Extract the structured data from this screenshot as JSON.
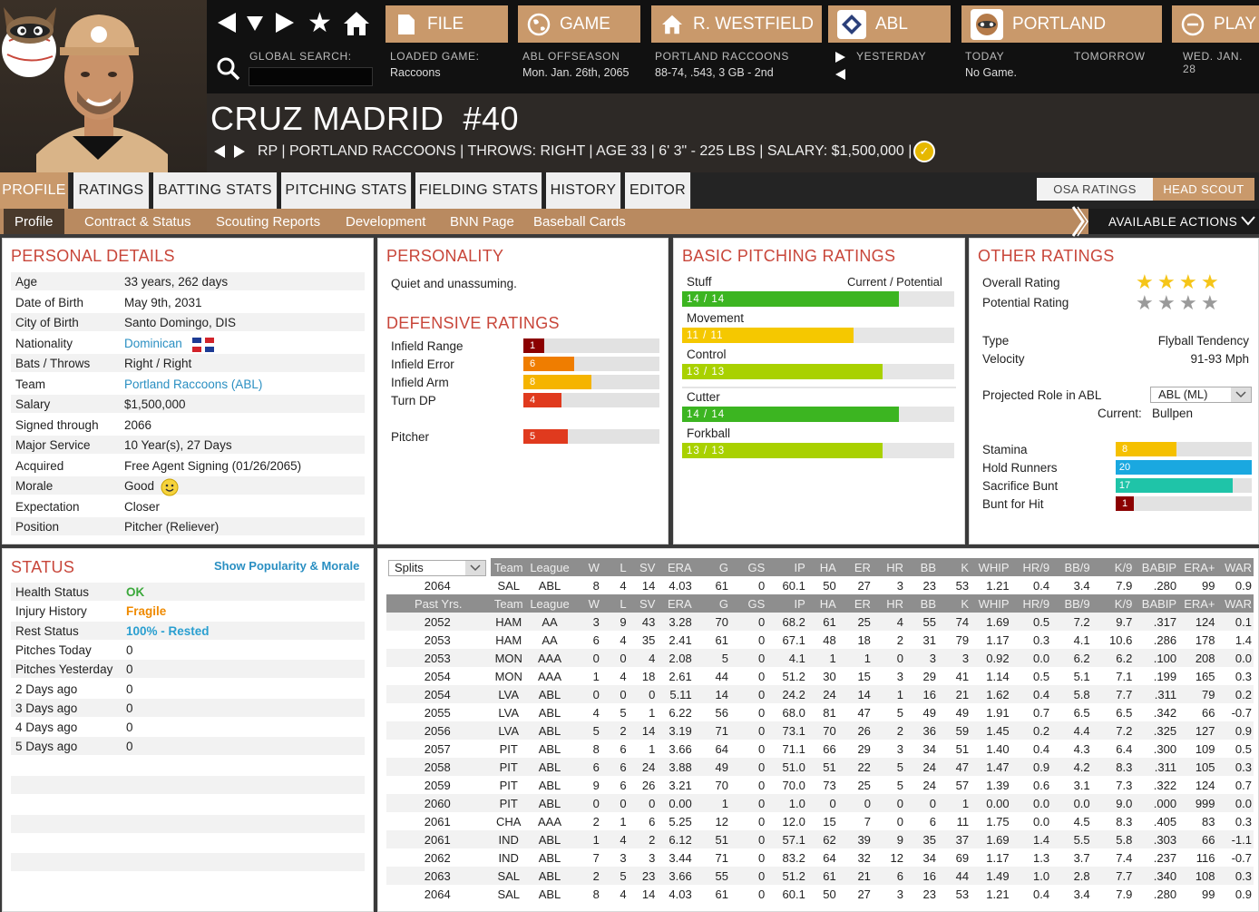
{
  "topbar": {
    "global_search_label": "GLOBAL SEARCH:",
    "search_value": "",
    "tabs": {
      "file": "FILE",
      "game": "GAME",
      "manager": "R. WESTFIELD",
      "league": "ABL",
      "team": "PORTLAND",
      "play": "PLAY"
    },
    "loaded_game_label": "LOADED GAME:",
    "loaded_game_value": "Raccoons",
    "league_label": "ABL OFFSEASON",
    "league_date": "Mon. Jan. 26th, 2065",
    "team_label": "PORTLAND RACCOONS",
    "team_record": "88-74, .543, 3 GB - 2nd",
    "yesterday_label": "YESTERDAY",
    "today_label": "TODAY",
    "today_value": "No Game.",
    "tomorrow_label": "TOMORROW",
    "next_date_label": "WED. JAN. 28"
  },
  "player": {
    "name": "CRUZ MADRID",
    "number": "#40",
    "info": "RP | PORTLAND RACCOONS  |  THROWS: RIGHT  |  AGE 33  |  6' 3\" - 225 LBS  |  SALARY: $1,500,000  |"
  },
  "tabs": [
    "PROFILE",
    "RATINGS",
    "BATTING STATS",
    "PITCHING STATS",
    "FIELDING STATS",
    "HISTORY",
    "EDITOR"
  ],
  "rating_toggle": {
    "osa": "OSA RATINGS",
    "head_scout": "HEAD SCOUT"
  },
  "subnav": [
    "Profile",
    "Contract & Status",
    "Scouting Reports",
    "Development",
    "BNN Page",
    "Baseball Cards"
  ],
  "actions_label": "AVAILABLE ACTIONS",
  "personal": {
    "title": "PERSONAL DETAILS",
    "rows": [
      {
        "label": "Age",
        "value": "33 years, 262 days"
      },
      {
        "label": "Date of Birth",
        "value": "May 9th, 2031"
      },
      {
        "label": "City of Birth",
        "value": "Santo Domingo, DIS"
      },
      {
        "label": "Nationality",
        "value": "Dominican"
      },
      {
        "label": "Bats / Throws",
        "value": "Right / Right"
      },
      {
        "label": "Team",
        "value": "Portland Raccoons (ABL)"
      },
      {
        "label": "Salary",
        "value": "$1,500,000"
      },
      {
        "label": "Signed through",
        "value": "2066"
      },
      {
        "label": "Major Service",
        "value": "10 Year(s), 27 Days"
      },
      {
        "label": "Acquired",
        "value": "Free Agent Signing (01/26/2065)"
      },
      {
        "label": "Morale",
        "value": "Good"
      },
      {
        "label": "Expectation",
        "value": "Closer"
      },
      {
        "label": "Position",
        "value": "Pitcher (Reliever)"
      }
    ]
  },
  "personality": {
    "title": "PERSONALITY",
    "text": "Quiet and unassuming."
  },
  "defensive": {
    "title": "DEFENSIVE RATINGS",
    "rows": [
      {
        "label": "Infield Range",
        "value": "1",
        "color": "#8b0000",
        "level": 0.02
      },
      {
        "label": "Infield Error",
        "value": "6",
        "color": "#ef7d00",
        "level": 0.28
      },
      {
        "label": "Infield Arm",
        "value": "8",
        "color": "#f5b400",
        "level": 0.42
      },
      {
        "label": "Turn DP",
        "value": "4",
        "color": "#e03a1e",
        "level": 0.17
      },
      {
        "label": "Pitcher",
        "value": "5",
        "color": "#e03a1e",
        "level": 0.22
      }
    ]
  },
  "basic_pitching": {
    "title": "BASIC PITCHING RATINGS",
    "header": "Current / Potential",
    "rows": [
      {
        "label": "Stuff",
        "value": "14 / 14",
        "color": "#3cb521",
        "level": 0.75
      },
      {
        "label": "Movement",
        "value": "11 / 11",
        "color": "#f5c800",
        "level": 0.55
      },
      {
        "label": "Control",
        "value": "13 / 13",
        "color": "#a9d100",
        "level": 0.68
      },
      {
        "label": "Cutter",
        "value": "14 / 14",
        "color": "#3cb521",
        "level": 0.75
      },
      {
        "label": "Forkball",
        "value": "13 / 13",
        "color": "#a9d100",
        "level": 0.68
      }
    ]
  },
  "other": {
    "title": "OTHER RATINGS",
    "overall_label": "Overall Rating",
    "overall_stars": 4,
    "potential_label": "Potential Rating",
    "potential_stars": 4,
    "type_label": "Type",
    "type_value": "Flyball Tendency",
    "velocity_label": "Velocity",
    "velocity_value": "91-93 Mph",
    "role_label": "Projected Role in ABL",
    "role_select": "ABL (ML)",
    "current_label": "Current:",
    "current_value": "Bullpen",
    "bars": [
      {
        "label": "Stamina",
        "value": "8",
        "color": "#f5c000",
        "level": 0.36
      },
      {
        "label": "Hold Runners",
        "value": "20",
        "color": "#1aa8e0",
        "level": 1.0
      },
      {
        "label": "Sacrifice Bunt",
        "value": "17",
        "color": "#1fc4a8",
        "level": 0.84
      },
      {
        "label": "Bunt for Hit",
        "value": "1",
        "color": "#8b0000",
        "level": 0.0
      }
    ]
  },
  "status": {
    "title": "STATUS",
    "link": "Show Popularity & Morale",
    "rows": [
      {
        "label": "Health Status",
        "value": "OK",
        "color": "#3aa83a"
      },
      {
        "label": "Injury History",
        "value": "Fragile",
        "color": "#ef8a00"
      },
      {
        "label": "Rest Status",
        "value": "100% - Rested",
        "color": "#2a9fd0"
      },
      {
        "label": "Pitches Today",
        "value": "0",
        "color": "#222"
      },
      {
        "label": "Pitches Yesterday",
        "value": "0",
        "color": "#222"
      },
      {
        "label": "2 Days ago",
        "value": "0",
        "color": "#222"
      },
      {
        "label": "3 Days ago",
        "value": "0",
        "color": "#222"
      },
      {
        "label": "4 Days ago",
        "value": "0",
        "color": "#222"
      },
      {
        "label": "5 Days ago",
        "value": "0",
        "color": "#222"
      }
    ]
  },
  "stats": {
    "splits_label": "Splits",
    "columns": [
      "Team",
      "League",
      "W",
      "L",
      "SV",
      "ERA",
      "G",
      "GS",
      "IP",
      "HA",
      "ER",
      "HR",
      "BB",
      "K",
      "WHIP",
      "HR/9",
      "BB/9",
      "K/9",
      "BABIP",
      "ERA+",
      "WAR"
    ],
    "current": [
      "2064",
      "SAL",
      "ABL",
      "8",
      "4",
      "14",
      "4.03",
      "61",
      "0",
      "60.1",
      "50",
      "27",
      "3",
      "23",
      "53",
      "1.21",
      "0.4",
      "3.4",
      "7.9",
      ".280",
      "99",
      "0.9"
    ],
    "past_label": "Past Yrs.",
    "past": [
      [
        "2052",
        "HAM",
        "AA",
        "3",
        "9",
        "43",
        "3.28",
        "70",
        "0",
        "68.2",
        "61",
        "25",
        "4",
        "55",
        "74",
        "1.69",
        "0.5",
        "7.2",
        "9.7",
        ".317",
        "124",
        "0.1"
      ],
      [
        "2053",
        "HAM",
        "AA",
        "6",
        "4",
        "35",
        "2.41",
        "61",
        "0",
        "67.1",
        "48",
        "18",
        "2",
        "31",
        "79",
        "1.17",
        "0.3",
        "4.1",
        "10.6",
        ".286",
        "178",
        "1.4"
      ],
      [
        "2053",
        "MON",
        "AAA",
        "0",
        "0",
        "4",
        "2.08",
        "5",
        "0",
        "4.1",
        "1",
        "1",
        "0",
        "3",
        "3",
        "0.92",
        "0.0",
        "6.2",
        "6.2",
        ".100",
        "208",
        "0.0"
      ],
      [
        "2054",
        "MON",
        "AAA",
        "1",
        "4",
        "18",
        "2.61",
        "44",
        "0",
        "51.2",
        "30",
        "15",
        "3",
        "29",
        "41",
        "1.14",
        "0.5",
        "5.1",
        "7.1",
        ".199",
        "165",
        "0.3"
      ],
      [
        "2054",
        "LVA",
        "ABL",
        "0",
        "0",
        "0",
        "5.11",
        "14",
        "0",
        "24.2",
        "24",
        "14",
        "1",
        "16",
        "21",
        "1.62",
        "0.4",
        "5.8",
        "7.7",
        ".311",
        "79",
        "0.2"
      ],
      [
        "2055",
        "LVA",
        "ABL",
        "4",
        "5",
        "1",
        "6.22",
        "56",
        "0",
        "68.0",
        "81",
        "47",
        "5",
        "49",
        "49",
        "1.91",
        "0.7",
        "6.5",
        "6.5",
        ".342",
        "66",
        "-0.7"
      ],
      [
        "2056",
        "LVA",
        "ABL",
        "5",
        "2",
        "14",
        "3.19",
        "71",
        "0",
        "73.1",
        "70",
        "26",
        "2",
        "36",
        "59",
        "1.45",
        "0.2",
        "4.4",
        "7.2",
        ".325",
        "127",
        "0.9"
      ],
      [
        "2057",
        "PIT",
        "ABL",
        "8",
        "6",
        "1",
        "3.66",
        "64",
        "0",
        "71.1",
        "66",
        "29",
        "3",
        "34",
        "51",
        "1.40",
        "0.4",
        "4.3",
        "6.4",
        ".300",
        "109",
        "0.5"
      ],
      [
        "2058",
        "PIT",
        "ABL",
        "6",
        "6",
        "24",
        "3.88",
        "49",
        "0",
        "51.0",
        "51",
        "22",
        "5",
        "24",
        "47",
        "1.47",
        "0.9",
        "4.2",
        "8.3",
        ".311",
        "105",
        "0.3"
      ],
      [
        "2059",
        "PIT",
        "ABL",
        "9",
        "6",
        "26",
        "3.21",
        "70",
        "0",
        "70.0",
        "73",
        "25",
        "5",
        "24",
        "57",
        "1.39",
        "0.6",
        "3.1",
        "7.3",
        ".322",
        "124",
        "0.7"
      ],
      [
        "2060",
        "PIT",
        "ABL",
        "0",
        "0",
        "0",
        "0.00",
        "1",
        "0",
        "1.0",
        "0",
        "0",
        "0",
        "0",
        "1",
        "0.00",
        "0.0",
        "0.0",
        "9.0",
        ".000",
        "999",
        "0.0"
      ],
      [
        "2061",
        "CHA",
        "AAA",
        "2",
        "1",
        "6",
        "5.25",
        "12",
        "0",
        "12.0",
        "15",
        "7",
        "0",
        "6",
        "11",
        "1.75",
        "0.0",
        "4.5",
        "8.3",
        ".405",
        "83",
        "0.3"
      ],
      [
        "2061",
        "IND",
        "ABL",
        "1",
        "4",
        "2",
        "6.12",
        "51",
        "0",
        "57.1",
        "62",
        "39",
        "9",
        "35",
        "37",
        "1.69",
        "1.4",
        "5.5",
        "5.8",
        ".303",
        "66",
        "-1.1"
      ],
      [
        "2062",
        "IND",
        "ABL",
        "7",
        "3",
        "3",
        "3.44",
        "71",
        "0",
        "83.2",
        "64",
        "32",
        "12",
        "34",
        "69",
        "1.17",
        "1.3",
        "3.7",
        "7.4",
        ".237",
        "116",
        "-0.7"
      ],
      [
        "2063",
        "SAL",
        "ABL",
        "2",
        "5",
        "23",
        "3.66",
        "55",
        "0",
        "51.2",
        "61",
        "21",
        "6",
        "16",
        "44",
        "1.49",
        "1.0",
        "2.8",
        "7.7",
        ".340",
        "108",
        "0.3"
      ],
      [
        "2064",
        "SAL",
        "ABL",
        "8",
        "4",
        "14",
        "4.03",
        "61",
        "0",
        "60.1",
        "50",
        "27",
        "3",
        "23",
        "53",
        "1.21",
        "0.4",
        "3.4",
        "7.9",
        ".280",
        "99",
        "0.9"
      ]
    ]
  }
}
